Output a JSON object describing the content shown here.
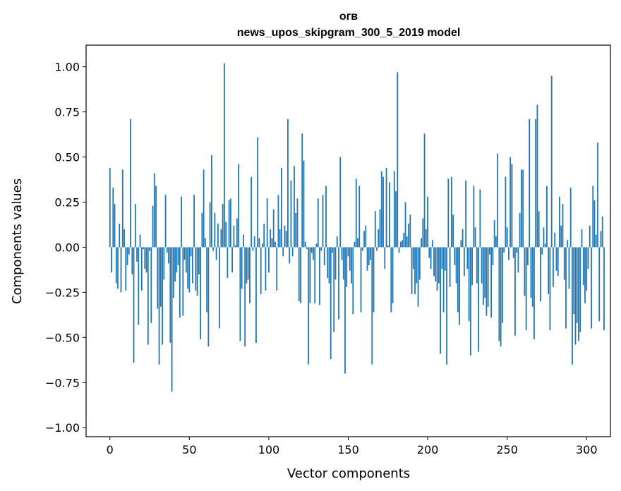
{
  "chart_data": {
    "type": "bar",
    "title": "огв",
    "subtitle": "news_upos_skipgram_300_5_2019 model",
    "xlabel": "Vector components",
    "ylabel": "Components values",
    "xlim": [
      -15,
      315
    ],
    "ylim": [
      -1.05,
      1.12
    ],
    "xticks": [
      0,
      50,
      100,
      150,
      200,
      250,
      300
    ],
    "yticks": [
      -1.0,
      -0.75,
      -0.5,
      -0.25,
      0.0,
      0.25,
      0.5,
      0.75,
      1.0
    ],
    "ytick_labels": [
      "−1.00",
      "−0.75",
      "−0.50",
      "−0.25",
      "0.00",
      "0.25",
      "0.50",
      "0.75",
      "1.00"
    ],
    "color": "#1f77b4",
    "grid": false,
    "values": [
      0.44,
      -0.14,
      0.33,
      0.24,
      -0.2,
      -0.23,
      0.13,
      -0.25,
      0.43,
      0.1,
      -0.24,
      -0.1,
      -0.04,
      0.71,
      -0.15,
      -0.64,
      0.24,
      -0.08,
      -0.43,
      0.07,
      -0.24,
      -0.01,
      -0.12,
      -0.14,
      -0.54,
      -0.02,
      -0.42,
      0.23,
      0.41,
      0.34,
      -0.34,
      -0.65,
      -0.33,
      -0.54,
      -0.18,
      0.29,
      -0.03,
      -0.09,
      -0.53,
      -0.8,
      -0.28,
      -0.19,
      -0.14,
      -0.1,
      -0.39,
      0.28,
      -0.38,
      -0.07,
      -0.14,
      -0.23,
      -0.25,
      -0.05,
      -0.2,
      0.29,
      -0.24,
      -0.27,
      -0.15,
      -0.51,
      0.19,
      0.43,
      0.05,
      -0.36,
      -0.55,
      0.25,
      0.51,
      -0.02,
      0.19,
      -0.07,
      0.13,
      -0.45,
      0.1,
      0.24,
      1.02,
      0.14,
      -0.17,
      0.26,
      0.27,
      -0.14,
      0.12,
      0.01,
      0.16,
      0.46,
      -0.52,
      -0.23,
      0.07,
      -0.55,
      -0.2,
      -0.18,
      -0.31,
      0.39,
      -0.02,
      0.06,
      -0.53,
      0.61,
      0.05,
      -0.26,
      0.02,
      0.13,
      -0.24,
      0.27,
      -0.14,
      0.1,
      0.05,
      0.21,
      0.03,
      -0.24,
      0.29,
      0.1,
      0.44,
      -0.05,
      0.12,
      0.09,
      0.71,
      -0.09,
      0.37,
      -0.05,
      0.45,
      0.19,
      0.27,
      -0.3,
      -0.31,
      0.63,
      0.48,
      0.03,
      -0.01,
      -0.65,
      -0.31,
      -0.03,
      -0.07,
      -0.31,
      0.02,
      0.27,
      -0.32,
      -0.02,
      0.29,
      -0.1,
      0.34,
      -0.17,
      -0.2,
      -0.62,
      -0.03,
      -0.47,
      -0.18,
      0.06,
      -0.4,
      0.5,
      -0.07,
      -0.18,
      -0.7,
      -0.22,
      -0.05,
      -0.13,
      -0.2,
      -0.37,
      0.03,
      0.38,
      0.05,
      0.34,
      -0.36,
      -0.02,
      0.09,
      0.12,
      -0.13,
      -0.1,
      -0.07,
      -0.65,
      -0.36,
      0.2,
      -0.02,
      0.1,
      0.21,
      0.42,
      0.39,
      -0.12,
      0.44,
      0.01,
      0.36,
      -0.36,
      -0.31,
      0.42,
      0.31,
      0.97,
      -0.03,
      0.03,
      0.04,
      0.08,
      0.25,
      0.06,
      0.13,
      0.18,
      -0.26,
      -0.12,
      -0.26,
      -0.2,
      -0.33,
      -0.18,
      0.05,
      0.16,
      0.63,
      0.1,
      0.28,
      -0.06,
      -0.12,
      0.04,
      -0.16,
      -0.19,
      -0.24,
      -0.2,
      -0.59,
      -0.12,
      -0.36,
      -0.13,
      -0.65,
      0.38,
      -0.22,
      0.39,
      0.18,
      -0.1,
      -0.2,
      -0.36,
      -0.43,
      0.04,
      0.1,
      -0.16,
      0.37,
      -0.12,
      -0.41,
      -0.6,
      -0.21,
      0.34,
      0.11,
      -0.2,
      -0.58,
      0.32,
      -0.2,
      -0.32,
      -0.28,
      -0.38,
      -0.33,
      -0.04,
      -0.39,
      -0.1,
      0.15,
      0.06,
      0.52,
      -0.52,
      -0.55,
      -0.42,
      -0.03,
      0.39,
      0.11,
      -0.07,
      0.5,
      0.46,
      -0.06,
      -0.49,
      -0.03,
      -0.14,
      0.19,
      0.43,
      0.43,
      -0.27,
      -0.46,
      -0.1,
      0.71,
      -0.28,
      -0.33,
      -0.51,
      0.71,
      0.79,
      0.2,
      -0.3,
      -0.04,
      0.11,
      0.02,
      0.34,
      -0.26,
      -0.46,
      0.95,
      -0.22,
      0.08,
      -0.13,
      -0.16,
      0.28,
      0.12,
      0.24,
      -0.18,
      -0.45,
      0.04,
      -0.23,
      0.33,
      -0.65,
      -0.37,
      -0.54,
      -0.42,
      -0.52,
      -0.47,
      0.1,
      -0.21,
      -0.31,
      -0.24,
      -0.12,
      0.12,
      -0.45,
      0.34,
      0.26,
      0.07,
      0.58,
      -0.41,
      0.09,
      0.17,
      -0.46
    ]
  }
}
